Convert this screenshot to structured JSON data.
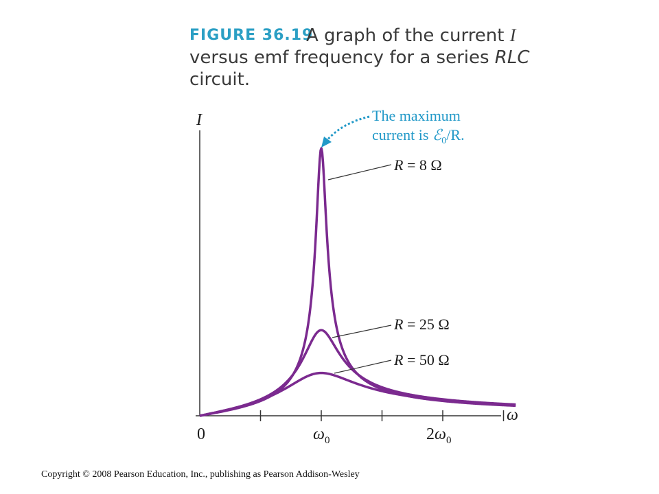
{
  "figure": {
    "label": "FIGURE 36.19",
    "caption_line1_pre": "A graph of the current",
    "caption_line1_var": "I",
    "caption_line2_pre": "versus emf frequency for a series",
    "caption_line2_var": "RLC",
    "caption_line3": "circuit."
  },
  "annotation": {
    "line1": "The maximum",
    "line2_pre": "current is",
    "line2_sym": "ℰ",
    "line2_sub": "0",
    "line2_post": "/R.",
    "color": "#2299c8"
  },
  "copyright": "Copyright © 2008 Pearson Education, Inc., publishing as Pearson Addison-Wesley",
  "chart_data": {
    "type": "line",
    "xlabel": "ω",
    "ylabel": "I",
    "x_ticks": [
      {
        "value": 0,
        "label": "0",
        "labeled": true
      },
      {
        "value": 0.5,
        "label": "",
        "labeled": false
      },
      {
        "value": 1,
        "label": "ω",
        "sub": "0",
        "labeled": true
      },
      {
        "value": 1.5,
        "label": "",
        "labeled": false
      },
      {
        "value": 2,
        "label": "2ω",
        "sub": "0",
        "labeled": true
      },
      {
        "value": 2.5,
        "label": "",
        "labeled": false
      }
    ],
    "xlim": [
      0,
      2.6
    ],
    "ylim": [
      0,
      1.0
    ],
    "line_color": "#7b2a8f",
    "series": [
      {
        "name": "R = 8 Ω",
        "label_pre": "R",
        "label_post": " = 8 Ω",
        "R": 8,
        "peak": 1.0
      },
      {
        "name": "R = 25 Ω",
        "label_pre": "R",
        "label_post": " = 25 Ω",
        "R": 25,
        "peak": 0.32
      },
      {
        "name": "R = 50 Ω",
        "label_pre": "R",
        "label_post": " = 50 Ω",
        "R": 50,
        "peak": 0.16
      }
    ]
  }
}
